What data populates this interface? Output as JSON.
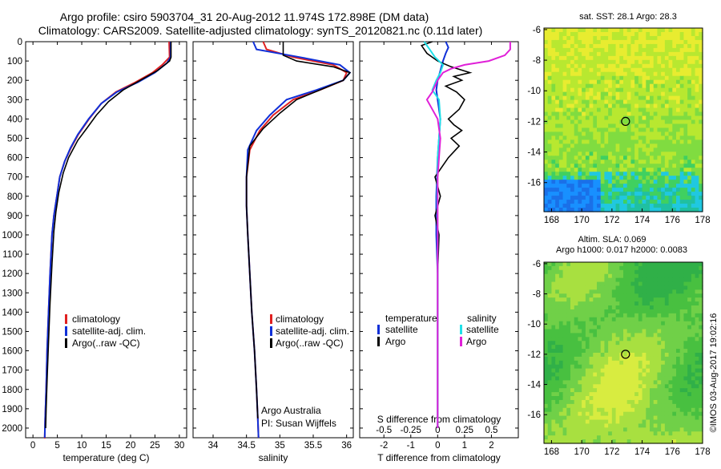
{
  "header": {
    "line1": "Argo profile: csiro 5903704_31 20-Aug-2012 11.974S 172.898E (DM data)",
    "line2": "Climatology: CARS2009. Satellite-adjusted climatology: synTS_20120821.nc (0.11d later)"
  },
  "colors": {
    "climatology": "#e02020",
    "satellite": "#1030d8",
    "argo": "#000000",
    "satellite_s": "#20e0e8",
    "argo_s": "#e020d8"
  },
  "depth_axis": {
    "range": [
      0,
      2050
    ],
    "ticks": [
      0,
      100,
      200,
      300,
      400,
      500,
      600,
      700,
      800,
      900,
      1000,
      1100,
      1200,
      1300,
      1400,
      1500,
      1600,
      1700,
      1800,
      1900,
      2000
    ]
  },
  "legend_profile": {
    "climatology": "climatology",
    "satellite": "satellite-adj. clim.",
    "argo": "Argo(..raw -QC)"
  },
  "legend_diff": {
    "head_t": "temperature",
    "head_s": "salinity",
    "sat_t": "satellite",
    "argo_t": "Argo",
    "sat_s": "satellite",
    "argo_s": "Argo"
  },
  "notes": {
    "agency": "Argo Australia",
    "pi": "PI: Susan Wijffels"
  },
  "credit": "©IMOS 03-Aug-2017 19:02:16",
  "chart_data": [
    {
      "type": "line",
      "id": "temperature",
      "xlabel": "temperature (deg C)",
      "xlim": [
        -1.5,
        31.5
      ],
      "xticks": [
        0,
        5,
        10,
        15,
        20,
        25,
        30
      ],
      "ylim": [
        0,
        2050
      ],
      "series": [
        {
          "name": "climatology",
          "color": "red",
          "x": [
            27.9,
            28.0,
            26.5,
            24.5,
            21.0,
            17.0,
            14.0,
            11.5,
            9.3,
            7.8,
            6.5,
            5.5,
            4.9,
            4.3,
            3.9,
            3.5,
            3.2,
            2.9,
            2.7,
            2.5,
            2.4,
            2.3
          ],
          "y": [
            0,
            80,
            120,
            160,
            210,
            260,
            320,
            400,
            480,
            550,
            620,
            700,
            800,
            900,
            1000,
            1200,
            1400,
            1600,
            1800,
            1950,
            2050,
            2050
          ]
        },
        {
          "name": "satellite-adj. clim.",
          "color": "blue",
          "x": [
            28.2,
            28.2,
            27.5,
            25.0,
            21.5,
            17.2,
            14.0,
            11.4,
            9.2,
            7.7,
            6.5,
            5.5,
            4.9,
            4.3,
            3.9,
            3.5,
            3.2,
            2.9,
            2.7,
            2.5,
            2.4
          ],
          "y": [
            0,
            80,
            110,
            160,
            210,
            260,
            320,
            400,
            480,
            550,
            620,
            700,
            800,
            900,
            1000,
            1200,
            1400,
            1600,
            1800,
            1950,
            2050
          ]
        },
        {
          "name": "Argo(..raw -QC)",
          "color": "black",
          "x": [
            28.3,
            28.3,
            28.0,
            25.5,
            22.0,
            18.5,
            15.5,
            13.0,
            11.0,
            9.2,
            7.3,
            6.2,
            5.3,
            4.7,
            4.3,
            3.9,
            3.5,
            3.2,
            2.9,
            2.7,
            2.6
          ],
          "y": [
            0,
            80,
            100,
            150,
            200,
            250,
            310,
            380,
            450,
            510,
            600,
            680,
            780,
            880,
            980,
            1150,
            1350,
            1550,
            1750,
            1900,
            2000
          ]
        }
      ]
    },
    {
      "type": "line",
      "id": "salinity",
      "xlabel": "salinity",
      "xlim": [
        33.7,
        36.1
      ],
      "xticks": [
        34,
        34.5,
        35,
        35.5,
        36
      ],
      "ylim": [
        0,
        2050
      ],
      "series": [
        {
          "name": "climatology",
          "color": "red",
          "x": [
            34.75,
            34.8,
            35.2,
            35.8,
            36.0,
            35.95,
            35.6,
            35.2,
            34.9,
            34.7,
            34.55,
            34.5,
            34.5,
            34.52,
            34.55,
            34.58,
            34.62,
            34.65,
            34.67,
            34.68
          ],
          "y": [
            0,
            40,
            80,
            120,
            160,
            200,
            250,
            300,
            380,
            460,
            560,
            700,
            850,
            1000,
            1200,
            1400,
            1600,
            1800,
            1950,
            2050
          ]
        },
        {
          "name": "satellite-adj. clim.",
          "color": "blue",
          "x": [
            34.6,
            34.65,
            35.3,
            35.9,
            36.05,
            35.95,
            35.55,
            35.1,
            34.85,
            34.65,
            34.52,
            34.5,
            34.5,
            34.52,
            34.55,
            34.58,
            34.62,
            34.65,
            34.67,
            34.68
          ],
          "y": [
            0,
            40,
            80,
            120,
            160,
            200,
            250,
            300,
            380,
            460,
            560,
            700,
            850,
            1000,
            1200,
            1400,
            1600,
            1800,
            1950,
            2050
          ]
        },
        {
          "name": "Argo(..raw -QC)",
          "color": "black",
          "x": [
            35.05,
            35.05,
            35.25,
            35.8,
            36.05,
            35.95,
            35.6,
            35.25,
            35.0,
            34.75,
            34.55,
            34.5,
            34.5,
            34.52,
            34.55,
            34.58,
            34.62,
            34.65,
            34.67
          ],
          "y": [
            0,
            70,
            100,
            130,
            160,
            200,
            250,
            300,
            370,
            450,
            540,
            700,
            850,
            1000,
            1200,
            1400,
            1600,
            1800,
            1950
          ]
        }
      ]
    },
    {
      "type": "line",
      "id": "differences",
      "xlabel": "T difference from climatology",
      "x2label": "S difference from climatology",
      "xlim": [
        -2.9,
        3.0
      ],
      "xticks": [
        -2,
        -1,
        0,
        1,
        2
      ],
      "x2ticks": [
        -0.5,
        -0.25,
        0,
        0.25,
        0.5
      ],
      "ylim": [
        0,
        2050
      ],
      "series": [
        {
          "name": "satellite (T)",
          "color": "blue",
          "x": [
            0.3,
            0.4,
            0.3,
            0.2,
            0.1,
            0.0,
            -0.05,
            0.0,
            0.1,
            0.05,
            0.0,
            -0.05,
            -0.05,
            0.0,
            0.0,
            0.0,
            0.0,
            0.0
          ],
          "y": [
            0,
            30,
            60,
            100,
            150,
            200,
            250,
            300,
            400,
            500,
            600,
            800,
            1000,
            1200,
            1400,
            1600,
            1800,
            2000
          ]
        },
        {
          "name": "Argo (T)",
          "color": "black",
          "x": [
            -0.2,
            -0.6,
            -0.4,
            0.0,
            0.5,
            1.2,
            0.6,
            0.9,
            0.3,
            0.7,
            1.0,
            0.8,
            0.4,
            0.6,
            0.9,
            0.5,
            0.8,
            0.4,
            -0.1,
            0.1,
            -0.1,
            0.05,
            0.0,
            0.0,
            0.0
          ],
          "y": [
            0,
            20,
            60,
            100,
            130,
            160,
            180,
            200,
            230,
            260,
            300,
            350,
            400,
            430,
            460,
            500,
            540,
            600,
            700,
            800,
            900,
            1000,
            1200,
            1500,
            2000
          ]
        },
        {
          "name": "satellite (S)",
          "color": "cyan",
          "x": [
            -0.5,
            -0.3,
            -0.1,
            0.2,
            0.1,
            -0.05,
            -0.2,
            0.05,
            0.1,
            0.0,
            -0.02,
            0.0,
            0.0,
            0.0
          ],
          "y": [
            0,
            40,
            80,
            120,
            160,
            200,
            250,
            300,
            400,
            600,
            800,
            1000,
            1500,
            2000
          ]
        },
        {
          "name": "Argo (S)",
          "color": "magenta",
          "x": [
            2.7,
            2.7,
            2.5,
            1.9,
            1.0,
            0.5,
            0.2,
            0.0,
            -0.2,
            -0.4,
            -0.2,
            0.0,
            0.1,
            0.0,
            0.0,
            0.0,
            0.0
          ],
          "y": [
            0,
            40,
            70,
            100,
            120,
            140,
            160,
            200,
            260,
            300,
            350,
            400,
            500,
            700,
            1000,
            1500,
            2000
          ]
        }
      ]
    }
  ],
  "map_sst": {
    "title": "sat. SST: 28.1 Argo: 28.3",
    "xticks": [
      168,
      170,
      172,
      174,
      176,
      178
    ],
    "yticks": [
      -6,
      -8,
      -10,
      -12,
      -14,
      -16
    ],
    "float_lon": 172.9,
    "float_lat": -12.0
  },
  "map_sla": {
    "title1": "Altim. SLA: 0.069",
    "title2": "Argo h1000: 0.017 h2000: 0.0083",
    "xticks": [
      168,
      170,
      172,
      174,
      176,
      178
    ],
    "yticks": [
      -6,
      -8,
      -10,
      -12,
      -14,
      -16
    ],
    "float_lon": 172.9,
    "float_lat": -12.0
  }
}
